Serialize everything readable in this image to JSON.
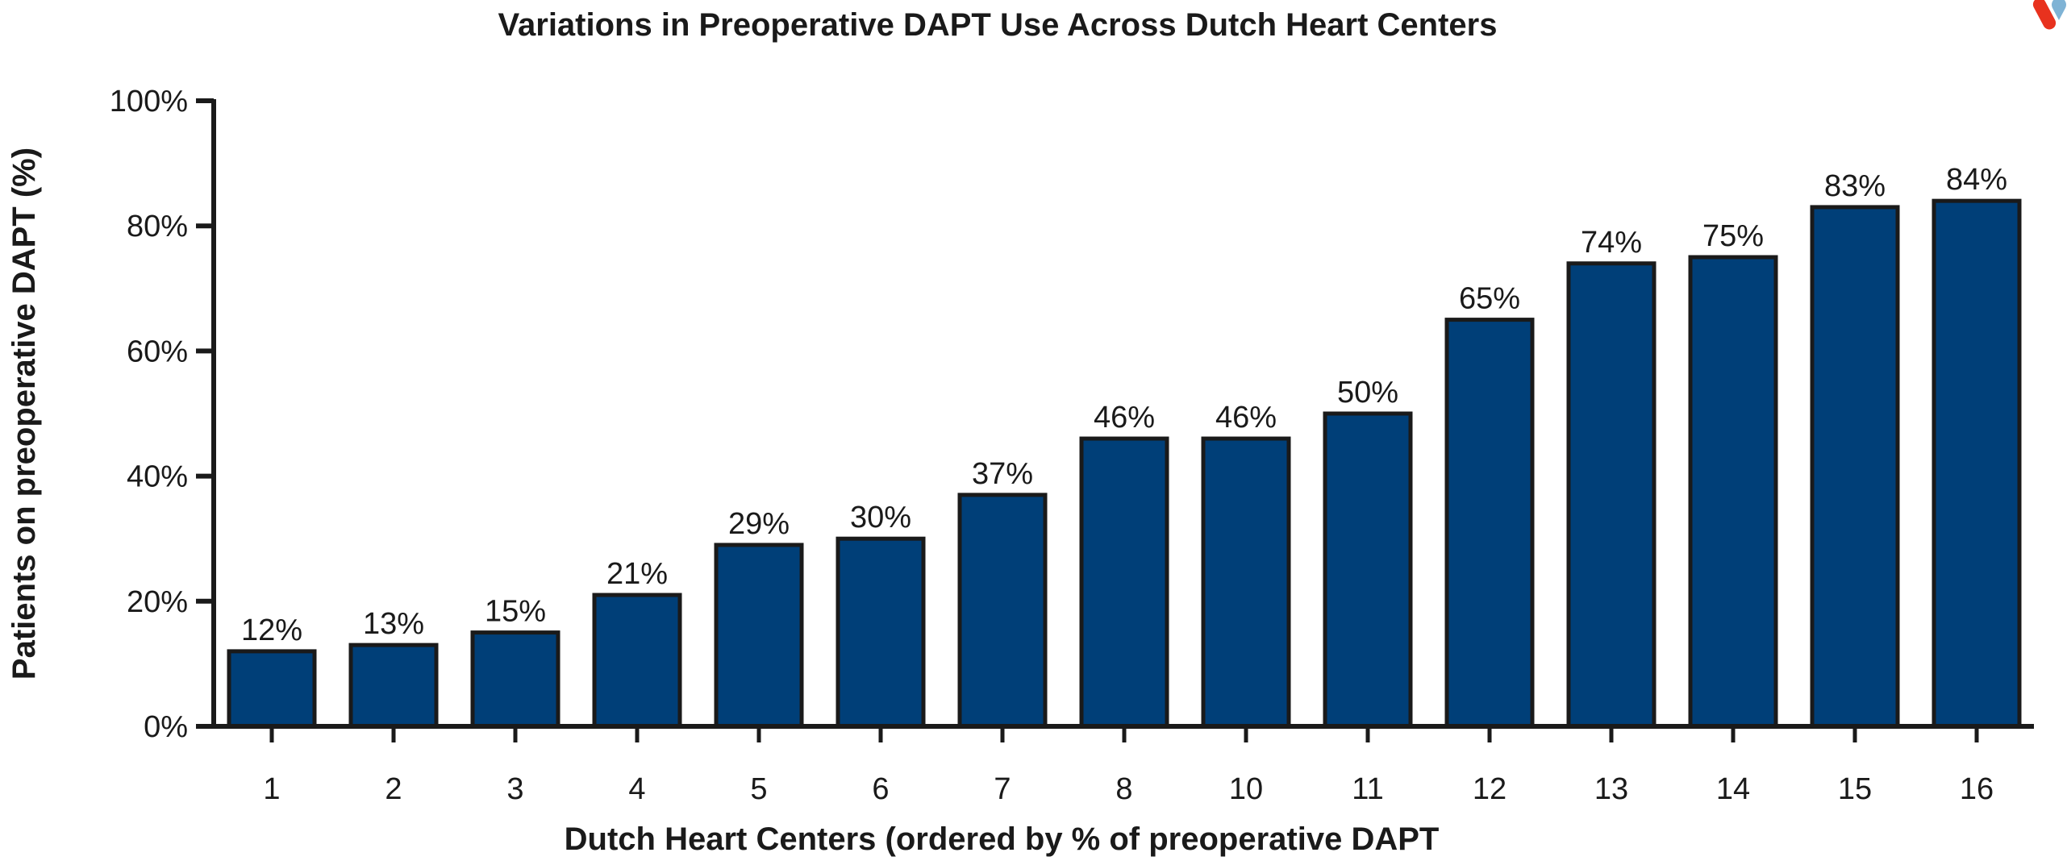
{
  "chart_data": {
    "type": "bar",
    "title": "Variations in Preoperative DAPT Use Across Dutch Heart Centers",
    "xlabel": "Dutch Heart Centers (ordered by % of preoperative DAPT",
    "ylabel": "Patients on preoperative DAPT (%)",
    "categories": [
      "1",
      "2",
      "3",
      "4",
      "5",
      "6",
      "7",
      "8",
      "10",
      "11",
      "12",
      "13",
      "14",
      "15",
      "16"
    ],
    "values": [
      12,
      13,
      15,
      21,
      29,
      30,
      37,
      46,
      46,
      50,
      65,
      74,
      75,
      83,
      84
    ],
    "data_labels": [
      "12%",
      "13%",
      "15%",
      "21%",
      "29%",
      "30%",
      "37%",
      "46%",
      "46%",
      "50%",
      "65%",
      "74%",
      "75%",
      "83%",
      "84%"
    ],
    "ylim": [
      0,
      100
    ],
    "yticks": [
      0,
      20,
      40,
      60,
      80,
      100
    ],
    "ytick_labels": [
      "0%",
      "20%",
      "40%",
      "60%",
      "80%",
      "100%"
    ],
    "grid": false,
    "legend": "none",
    "bar_color": "#003f78",
    "edge_color": "#1a1a1a"
  },
  "logo": {
    "red": "#e8321e",
    "blue": "#7fb3d5"
  }
}
